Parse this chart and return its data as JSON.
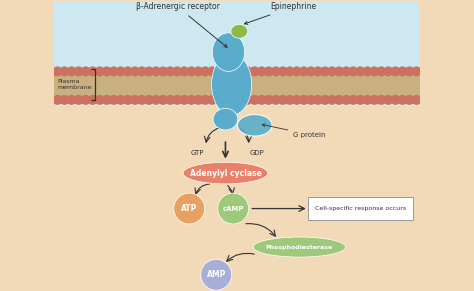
{
  "bg_top_color": "#cde8f0",
  "bg_bottom_color": "#f2d9b8",
  "membrane_top_color": "#cc7060",
  "membrane_mid_color": "#c8b080",
  "receptor_color": "#5aaccc",
  "epinephrine_color": "#8db84a",
  "adenylyl_color": "#e8806a",
  "atp_color": "#e8a060",
  "camp_color": "#9ec87a",
  "amp_color": "#a8aed8",
  "phospho_color": "#9ec87a",
  "arrow_color": "#333333",
  "text_color": "#333333",
  "beta_label": "β-Adrenergic receptor",
  "epi_label": "Epinephrine",
  "plasma_label": "Plasma\nmembrane",
  "gprotein_label": "G protein",
  "gtp_label": "GTP",
  "gdp_label": "GDP",
  "adenylyl_label": "Adenylyl cyclase",
  "atp_label": "ATP",
  "camp_label": "cAMP",
  "amp_label": "AMP",
  "phospho_label": "Phosphodiesterase",
  "cell_label": "Cell-specific response occurs"
}
